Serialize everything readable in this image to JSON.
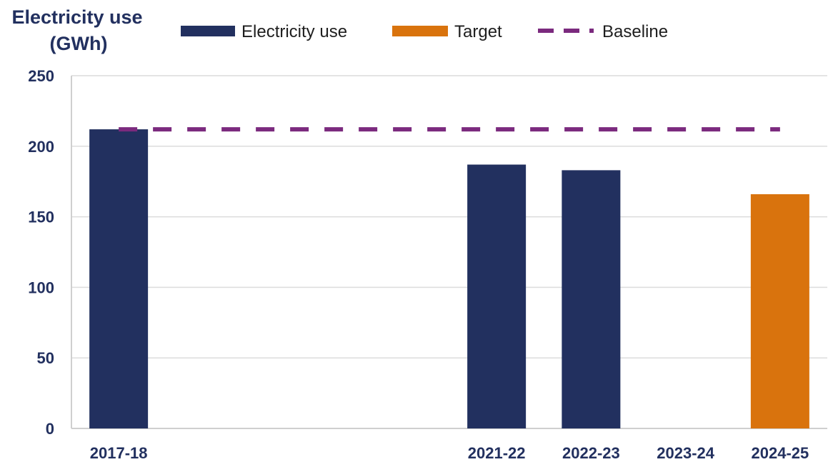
{
  "chart_data": {
    "type": "bar",
    "ylabel_lines": [
      "Electricity use",
      "(GWh)"
    ],
    "categories": [
      "2017-18",
      "",
      "",
      "",
      "2021-22",
      "2022-23",
      "2023-24",
      "2024-25"
    ],
    "series": [
      {
        "name": "Electricity use",
        "values": [
          212,
          null,
          null,
          null,
          187,
          183,
          null,
          null
        ],
        "color": "#22305f"
      },
      {
        "name": "Target",
        "values": [
          null,
          null,
          null,
          null,
          null,
          null,
          null,
          166
        ],
        "color": "#d9730d"
      }
    ],
    "baseline": {
      "name": "Baseline",
      "value": 212,
      "color": "#7b2a7e",
      "style": "dashed"
    },
    "ylim": [
      0,
      250
    ],
    "yticks": [
      0,
      50,
      100,
      150,
      200,
      250
    ],
    "grid": true,
    "legend_position": "top"
  }
}
